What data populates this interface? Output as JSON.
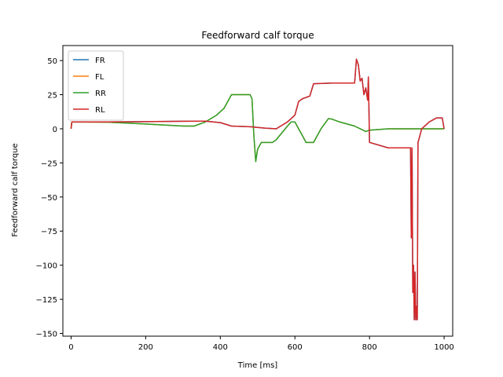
{
  "chart_data": {
    "type": "line",
    "title": "Feedforward calf torque",
    "xlabel": "Time [ms]",
    "ylabel": "Feedforward calf torque",
    "xlim": [
      -22,
      1023
    ],
    "ylim": [
      -152,
      61
    ],
    "xticks": [
      0,
      200,
      400,
      600,
      800,
      1000
    ],
    "xtick_labels": [
      "0",
      "200",
      "400",
      "600",
      "800",
      "1000"
    ],
    "yticks": [
      50,
      25,
      0,
      -25,
      -50,
      -75,
      -100,
      -125,
      -150
    ],
    "ytick_labels": [
      "50",
      "25",
      "0",
      "−25",
      "−50",
      "−75",
      "−100",
      "−125",
      "−150"
    ],
    "grid": false,
    "legend_position": "top-left",
    "series": [
      {
        "name": "FR",
        "color": "#1f77b4",
        "x": [
          0,
          2,
          100,
          200,
          300,
          360,
          400,
          430,
          480,
          482,
          500,
          520,
          550,
          580,
          600,
          610,
          620,
          640,
          650,
          700,
          760,
          765,
          770,
          775,
          780,
          785,
          790,
          795,
          797,
          800,
          850,
          910,
          912,
          914,
          916,
          918,
          920,
          922,
          924,
          926,
          928,
          930,
          935,
          940,
          960,
          980,
          995,
          1000
        ],
        "y": [
          0,
          5,
          5,
          5.2,
          5.5,
          5.6,
          4.5,
          2,
          1.5,
          1.5,
          1,
          0.5,
          0,
          5,
          10,
          20,
          22,
          24,
          33,
          33.5,
          33.5,
          51,
          47,
          35,
          37,
          25,
          30,
          21,
          38,
          -10,
          -14,
          -14,
          -80,
          -14,
          -120,
          -100,
          -140,
          -105,
          -140,
          -130,
          -140,
          -10,
          -5,
          0,
          5,
          8,
          8,
          0
        ]
      },
      {
        "name": "FL",
        "color": "#ff7f0e",
        "x": [
          0,
          2,
          100,
          200,
          300,
          330,
          360,
          390,
          410,
          430,
          480,
          485,
          490,
          495,
          500,
          510,
          540,
          550,
          580,
          590,
          600,
          610,
          620,
          630,
          650,
          660,
          670,
          690,
          700,
          720,
          760,
          790,
          795,
          800,
          850,
          950,
          1000
        ],
        "y": [
          0,
          5,
          4.8,
          3.5,
          2,
          2,
          5,
          10,
          15,
          25,
          25,
          22,
          -5,
          -24,
          -15,
          -10,
          -10,
          -8,
          2,
          5,
          5,
          0,
          -5,
          -10,
          -10,
          -5,
          0,
          7.5,
          7,
          5,
          2,
          -2,
          -1.5,
          -1,
          0,
          0,
          0
        ]
      },
      {
        "name": "RR",
        "color": "#2ca02c",
        "x": [
          0,
          2,
          100,
          200,
          300,
          330,
          360,
          390,
          410,
          430,
          480,
          485,
          490,
          495,
          500,
          510,
          540,
          550,
          580,
          590,
          600,
          610,
          620,
          630,
          650,
          660,
          670,
          690,
          700,
          720,
          760,
          790,
          795,
          800,
          850,
          950,
          1000
        ],
        "y": [
          0,
          5,
          4.8,
          3.5,
          2,
          2,
          5,
          10,
          15,
          25,
          25,
          22,
          -5,
          -24,
          -15,
          -10,
          -10,
          -8,
          2,
          5,
          5,
          0,
          -5,
          -10,
          -10,
          -5,
          0,
          7.5,
          7,
          5,
          2,
          -2,
          -1.5,
          -1,
          0,
          0,
          0
        ]
      },
      {
        "name": "RL",
        "color": "#d62728",
        "x": [
          0,
          2,
          100,
          200,
          300,
          360,
          400,
          430,
          480,
          482,
          500,
          520,
          550,
          580,
          600,
          610,
          620,
          640,
          650,
          700,
          760,
          765,
          770,
          775,
          780,
          785,
          790,
          795,
          797,
          800,
          850,
          910,
          912,
          914,
          916,
          918,
          920,
          922,
          924,
          926,
          928,
          930,
          935,
          940,
          960,
          980,
          995,
          1000
        ],
        "y": [
          0,
          5,
          5,
          5.2,
          5.5,
          5.6,
          4.5,
          2,
          1.5,
          1.5,
          1,
          0.5,
          0,
          5,
          10,
          20,
          22,
          24,
          33,
          33.5,
          33.5,
          51,
          47,
          35,
          37,
          25,
          30,
          21,
          38,
          -10,
          -14,
          -14,
          -80,
          -14,
          -120,
          -100,
          -140,
          -105,
          -140,
          -130,
          -140,
          -10,
          -5,
          0,
          5,
          8,
          8,
          0
        ]
      }
    ]
  }
}
